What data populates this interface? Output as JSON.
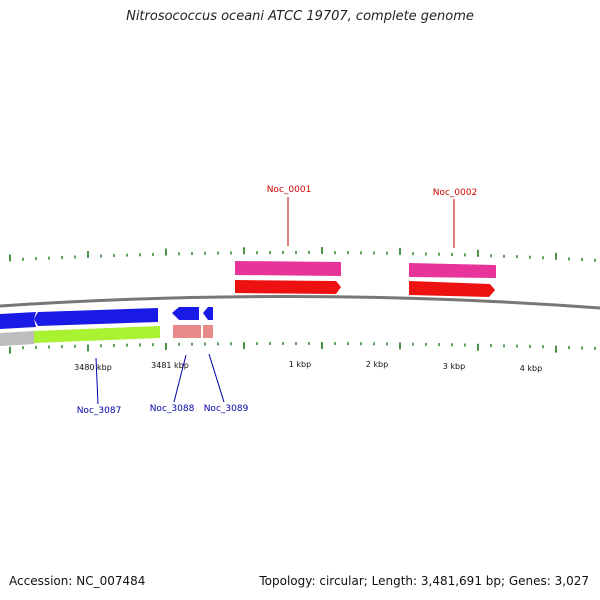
{
  "title": "Nitrosococcus oceani ATCC 19707, complete genome",
  "footer": {
    "accession": "Accession: NC_007484",
    "summary": "Topology: circular; Length: 3,481,691 bp; Genes: 3,027"
  },
  "colors": {
    "backbone": "#777777",
    "tick": "#1a7a1a",
    "label_forward": "#cc0000",
    "label_reverse": "#0000aa",
    "cds_forward": "#ee1111",
    "gene_forward": "#e8339a",
    "cds_reverse": "#1a1ae6",
    "gene_reverse_a": "#a8f232",
    "gene_reverse_b": "#e88a8a",
    "gray_track": "#bdbdbd"
  },
  "tick_labels": [
    "3480 kbp",
    "3481 kbp",
    "1 kbp",
    "2 kbp",
    "3 kbp",
    "4 kbp"
  ],
  "gene_labels": {
    "forward": [
      "Noc_0001",
      "Noc_0002"
    ],
    "reverse": [
      "Noc_3087",
      "Noc_3088",
      "Noc_3089"
    ]
  }
}
